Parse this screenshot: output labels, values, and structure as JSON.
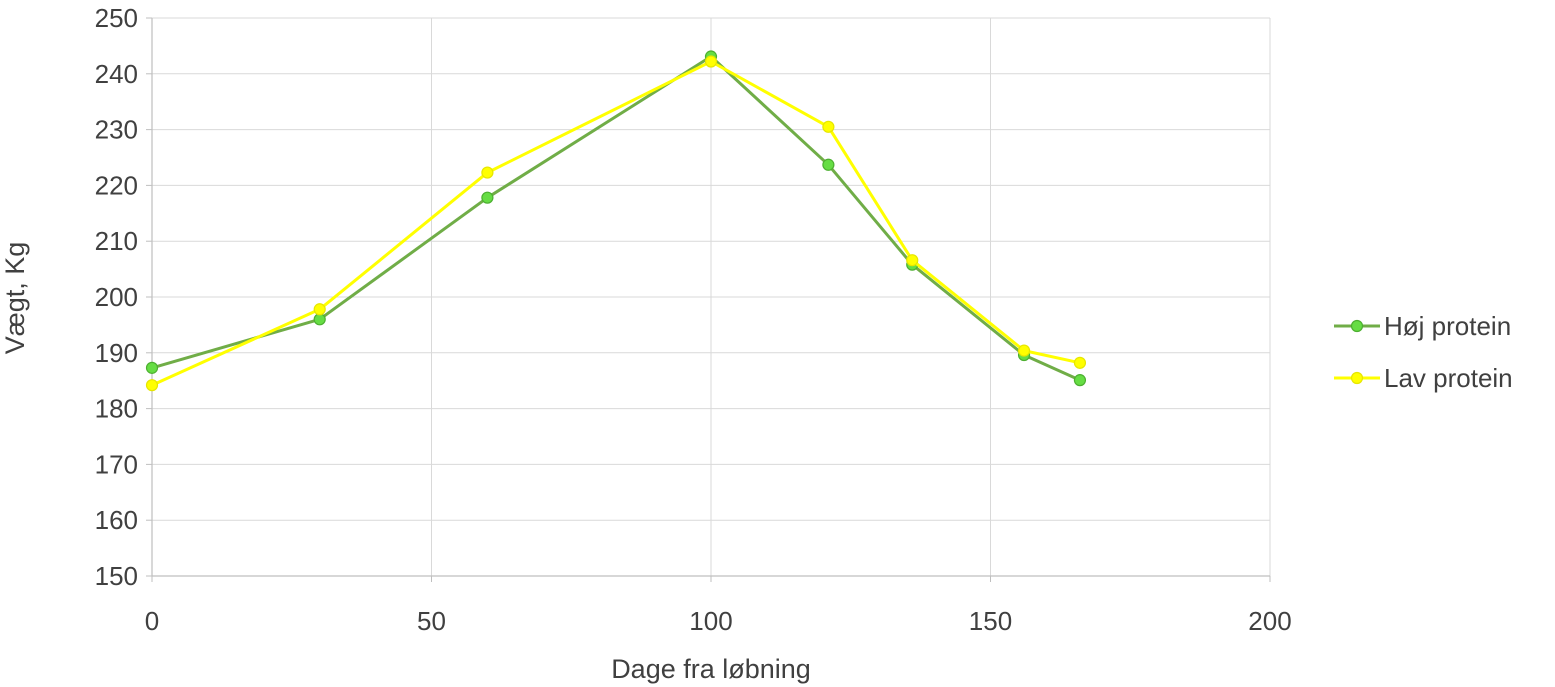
{
  "chart_data": {
    "type": "scatter",
    "mode": "lines+markers",
    "title": "",
    "xlabel": "Dage fra løbning",
    "ylabel": "Vægt, Kg",
    "xlim": [
      0,
      200
    ],
    "ylim": [
      150,
      250
    ],
    "xticks": [
      0,
      50,
      100,
      150,
      200
    ],
    "yticks": [
      150,
      160,
      170,
      180,
      190,
      200,
      210,
      220,
      230,
      240,
      250
    ],
    "grid": true,
    "legend_position": "right",
    "series": [
      {
        "name": "Høj protein",
        "color": "#70AD47",
        "marker_color": "#66DD44",
        "x": [
          0,
          30,
          60,
          100,
          121,
          136,
          156,
          166
        ],
        "y": [
          187.3,
          196,
          217.8,
          243.1,
          223.7,
          205.8,
          189.6,
          185.1
        ]
      },
      {
        "name": "Lav protein",
        "color": "#FFFF00",
        "marker_color": "#FFFF00",
        "x": [
          0,
          30,
          60,
          100,
          121,
          136,
          156,
          166
        ],
        "y": [
          184.2,
          197.8,
          222.3,
          242.2,
          230.5,
          206.6,
          190.4,
          188.2
        ]
      }
    ]
  }
}
